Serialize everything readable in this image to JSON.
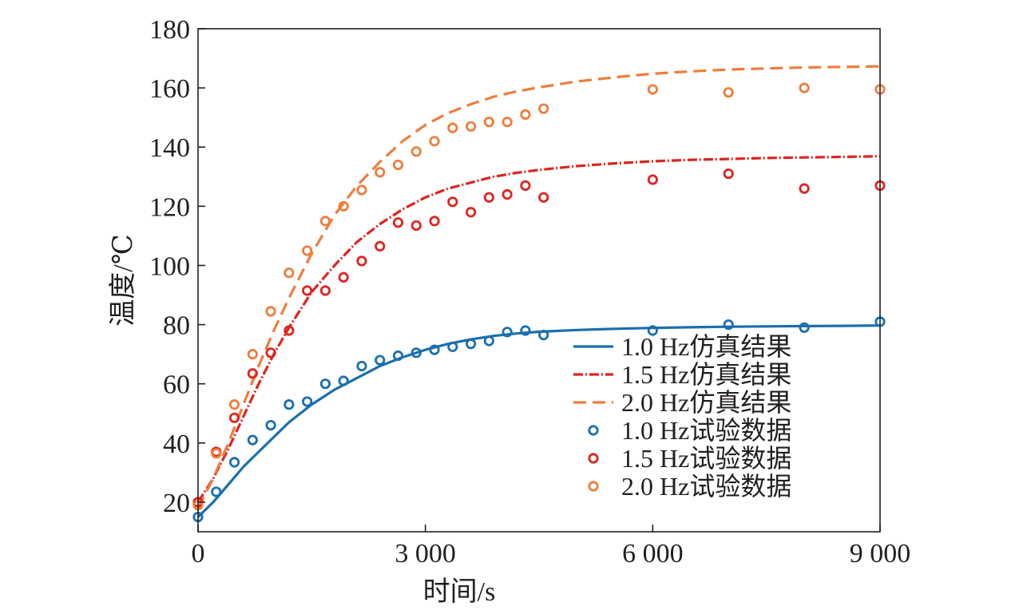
{
  "chart_data": {
    "type": "line",
    "xlabel": "时间/s",
    "ylabel": "温度/℃",
    "xlim": [
      0,
      9000
    ],
    "ylim": [
      10,
      180
    ],
    "x_ticks": [
      0,
      3000,
      6000,
      9000
    ],
    "x_tick_labels": [
      "0",
      "3 000",
      "6 000",
      "9 000"
    ],
    "y_ticks": [
      20,
      40,
      60,
      80,
      100,
      120,
      140,
      160,
      180
    ],
    "y_tick_labels": [
      "20",
      "40",
      "60",
      "80",
      "100",
      "120",
      "140",
      "160",
      "180"
    ],
    "grid": false,
    "legend_position": "bottom-right",
    "colors": {
      "blue": "#1a6faf",
      "red": "#e0231f",
      "orange": "#ee7d3b"
    },
    "series": [
      {
        "name": "1.0 Hz仿真结果",
        "kind": "line",
        "style": "solid",
        "color": "#1a6faf",
        "x": [
          0,
          200,
          400,
          600,
          800,
          1000,
          1200,
          1500,
          1800,
          2100,
          2400,
          2700,
          3000,
          3300,
          3600,
          3900,
          4200,
          4500,
          5000,
          5500,
          6000,
          6500,
          7000,
          7500,
          8000,
          8500,
          9000
        ],
        "y": [
          15,
          20,
          26,
          32,
          37,
          42,
          47,
          53,
          58,
          62,
          66,
          69,
          71.5,
          73.5,
          75,
          76.2,
          77,
          77.6,
          78.2,
          78.6,
          78.9,
          79.1,
          79.3,
          79.4,
          79.5,
          79.6,
          79.7
        ]
      },
      {
        "name": "1.5 Hz仿真结果",
        "kind": "line",
        "style": "dashdot",
        "color": "#e0231f",
        "x": [
          0,
          200,
          400,
          600,
          800,
          1000,
          1200,
          1500,
          1800,
          2100,
          2400,
          2700,
          3000,
          3300,
          3600,
          3900,
          4200,
          4500,
          5000,
          5500,
          6000,
          6500,
          7000,
          7500,
          8000,
          8500,
          9000
        ],
        "y": [
          20,
          28,
          38,
          49,
          60,
          70,
          79,
          91,
          100,
          108,
          114,
          119,
          123,
          126,
          128,
          130,
          131.3,
          132.3,
          133.6,
          134.5,
          135.2,
          135.7,
          136,
          136.3,
          136.5,
          136.7,
          136.9
        ]
      },
      {
        "name": "2.0 Hz仿真结果",
        "kind": "line",
        "style": "dashed",
        "color": "#ee7d3b",
        "x": [
          0,
          200,
          400,
          600,
          800,
          1000,
          1200,
          1500,
          1800,
          2100,
          2400,
          2700,
          3000,
          3300,
          3600,
          3900,
          4200,
          4500,
          5000,
          5500,
          6000,
          6500,
          7000,
          7500,
          8000,
          8500,
          9000
        ],
        "y": [
          18,
          28,
          40,
          53,
          66,
          78,
          89,
          104,
          117,
          127,
          135,
          142,
          147.5,
          151.5,
          154.5,
          157,
          158.8,
          160.2,
          162.2,
          163.6,
          164.8,
          165.6,
          166.2,
          166.6,
          166.9,
          167.1,
          167.3
        ]
      },
      {
        "name": "1.0 Hz试验数据",
        "kind": "scatter",
        "color": "#1a6faf",
        "x": [
          0,
          240,
          480,
          720,
          960,
          1200,
          1440,
          1680,
          1920,
          2160,
          2400,
          2640,
          2880,
          3120,
          3360,
          3600,
          3840,
          4080,
          4320,
          4560,
          6000,
          7000,
          8000,
          9000
        ],
        "y": [
          15,
          23.5,
          33.5,
          41,
          46,
          53,
          54,
          60,
          61,
          66,
          68,
          69.5,
          70.5,
          71.5,
          72.5,
          73.5,
          74.5,
          77.5,
          78,
          76.5,
          78,
          80,
          79,
          81
        ]
      },
      {
        "name": "1.5 Hz试验数据",
        "kind": "scatter",
        "color": "#e0231f",
        "x": [
          0,
          240,
          480,
          720,
          960,
          1200,
          1440,
          1680,
          1920,
          2160,
          2400,
          2640,
          2880,
          3120,
          3360,
          3600,
          3840,
          4080,
          4320,
          4560,
          6000,
          7000,
          8000,
          9000
        ],
        "y": [
          20,
          37,
          48.5,
          63.5,
          70.5,
          78,
          91.5,
          91.5,
          96,
          101.5,
          106.5,
          114.5,
          113.5,
          115,
          121.5,
          118,
          123,
          124,
          127,
          123,
          129,
          131,
          126,
          127
        ]
      },
      {
        "name": "2.0 Hz试验数据",
        "kind": "scatter",
        "color": "#ee7d3b",
        "x": [
          0,
          240,
          480,
          720,
          960,
          1200,
          1440,
          1680,
          1920,
          2160,
          2400,
          2640,
          2880,
          3120,
          3360,
          3600,
          3840,
          4080,
          4320,
          4560,
          6000,
          7000,
          8000,
          9000
        ],
        "y": [
          19,
          36.5,
          53,
          70,
          84.5,
          97.5,
          105,
          115,
          120,
          125.5,
          131.5,
          134,
          138.5,
          142,
          146.5,
          147,
          148.5,
          148.5,
          151,
          153,
          159.5,
          158.5,
          160,
          159.5
        ]
      }
    ]
  }
}
